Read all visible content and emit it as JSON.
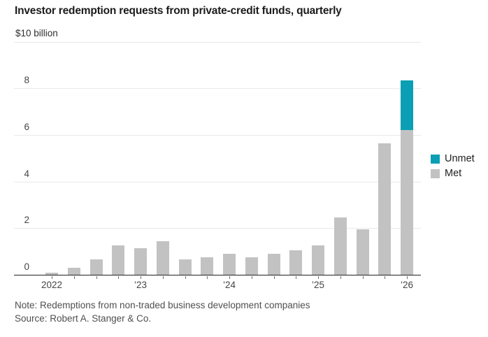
{
  "chart_data": {
    "type": "bar",
    "stacked": true,
    "title": "Investor redemption requests from private-credit funds, quarterly",
    "unit_label": "$10 billion",
    "categories": [
      "2022 Q1",
      "2022 Q2",
      "2022 Q3",
      "2022 Q4",
      "2023 Q1",
      "2023 Q2",
      "2023 Q3",
      "2023 Q4",
      "2024 Q1",
      "2024 Q2",
      "2024 Q3",
      "2024 Q4",
      "2025 Q1",
      "2025 Q2",
      "2025 Q3",
      "2025 Q4",
      "2026 Q1"
    ],
    "series": [
      {
        "name": "Unmet",
        "color": "#0a9fb4",
        "values": [
          0,
          0,
          0,
          0,
          0,
          0,
          0,
          0,
          0,
          0,
          0,
          0,
          0,
          0,
          0,
          0,
          2.15
        ]
      },
      {
        "name": "Met",
        "color": "#c2c2c2",
        "values": [
          0.08,
          0.3,
          0.65,
          1.25,
          1.15,
          1.45,
          0.65,
          0.75,
          0.9,
          0.75,
          0.9,
          1.05,
          1.25,
          2.45,
          1.95,
          5.65,
          6.2
        ]
      }
    ],
    "x_tick_labels": [
      "2022",
      "’23",
      "’24",
      "’25",
      "’26"
    ],
    "x_tick_positions": [
      0,
      4,
      8,
      12,
      16
    ],
    "yticks": [
      0,
      2,
      4,
      6,
      8
    ],
    "ylim": [
      0,
      10
    ],
    "grid": true,
    "legend_position": "right",
    "note": "Note: Redemptions from non-traded business development companies",
    "source": "Source: Robert A. Stanger & Co."
  }
}
